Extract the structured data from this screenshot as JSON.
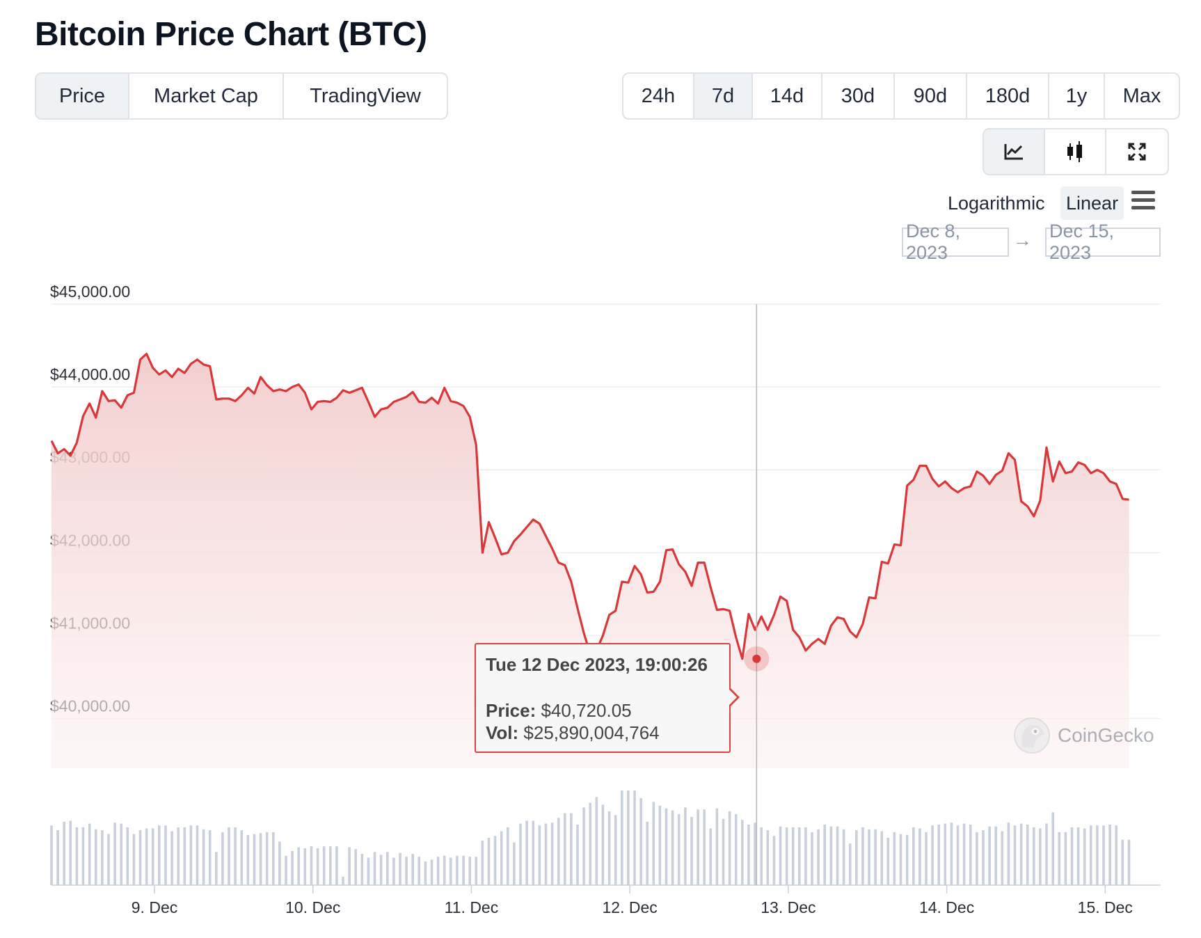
{
  "header": {
    "title": "Bitcoin Price Chart (BTC)"
  },
  "tabs": [
    {
      "label": "Price",
      "active": true
    },
    {
      "label": "Market Cap",
      "active": false
    },
    {
      "label": "TradingView",
      "active": false
    }
  ],
  "ranges": [
    {
      "label": "24h",
      "active": false
    },
    {
      "label": "7d",
      "active": true
    },
    {
      "label": "14d",
      "active": false
    },
    {
      "label": "30d",
      "active": false
    },
    {
      "label": "90d",
      "active": false
    },
    {
      "label": "180d",
      "active": false
    },
    {
      "label": "1y",
      "active": false
    },
    {
      "label": "Max",
      "active": false
    }
  ],
  "tools": [
    {
      "icon": "line-chart-icon",
      "active": true
    },
    {
      "icon": "candlestick-icon",
      "active": false
    },
    {
      "icon": "expand-icon",
      "active": false
    }
  ],
  "scale": {
    "log_label": "Logarithmic",
    "linear_label": "Linear",
    "selected": "Linear"
  },
  "date_range": {
    "from": "Dec 8, 2023",
    "arrow": "→",
    "to": "Dec 15, 2023"
  },
  "tooltip": {
    "date": "Tue 12 Dec 2023, 19:00:26",
    "price_label": "Price:",
    "price_value": "$40,720.05",
    "vol_label": "Vol:",
    "vol_value": "$25,890,004,764"
  },
  "watermark": {
    "text": "CoinGecko"
  },
  "colors": {
    "line": "#d9383a",
    "area_top": "#f4d2d2",
    "volume": "#c8d0dc",
    "grid": "#eeeeee"
  },
  "chart_data": {
    "type": "area",
    "title": "",
    "xlabel": "",
    "ylabel": "",
    "x_range": [
      8.35,
      15.35
    ],
    "ylim": [
      39400,
      45000
    ],
    "y_ticks": [
      40000,
      41000,
      42000,
      43000,
      44000,
      45000
    ],
    "y_tick_labels": [
      "$40,000.00",
      "$41,000.00",
      "$42,000.00",
      "$43,000.00",
      "$44,000.00",
      "$45,000.00"
    ],
    "x_ticks": [
      9,
      10,
      11,
      12,
      13,
      14,
      15
    ],
    "x_tick_labels": [
      "9. Dec",
      "10. Dec",
      "11. Dec",
      "12. Dec",
      "13. Dec",
      "14. Dec",
      "15. Dec"
    ],
    "grid": true,
    "legend": "none",
    "crosshair_x": 12.8,
    "highlight": {
      "x": 12.8,
      "y": 40720.05
    },
    "price_series": [
      [
        8.35,
        43350
      ],
      [
        8.39,
        43200
      ],
      [
        8.43,
        43250
      ],
      [
        8.47,
        43170
      ],
      [
        8.51,
        43330
      ],
      [
        8.55,
        43650
      ],
      [
        8.59,
        43800
      ],
      [
        8.63,
        43630
      ],
      [
        8.67,
        43950
      ],
      [
        8.71,
        43830
      ],
      [
        8.75,
        43840
      ],
      [
        8.79,
        43750
      ],
      [
        8.83,
        43900
      ],
      [
        8.87,
        43930
      ],
      [
        8.91,
        44330
      ],
      [
        8.95,
        44400
      ],
      [
        8.99,
        44230
      ],
      [
        9.03,
        44150
      ],
      [
        9.07,
        44200
      ],
      [
        9.11,
        44120
      ],
      [
        9.15,
        44220
      ],
      [
        9.19,
        44170
      ],
      [
        9.23,
        44280
      ],
      [
        9.27,
        44330
      ],
      [
        9.31,
        44270
      ],
      [
        9.35,
        44250
      ],
      [
        9.39,
        43850
      ],
      [
        9.43,
        43860
      ],
      [
        9.47,
        43860
      ],
      [
        9.51,
        43830
      ],
      [
        9.55,
        43900
      ],
      [
        9.59,
        43990
      ],
      [
        9.63,
        43920
      ],
      [
        9.67,
        44120
      ],
      [
        9.71,
        44020
      ],
      [
        9.75,
        43950
      ],
      [
        9.79,
        43970
      ],
      [
        9.83,
        43950
      ],
      [
        9.87,
        44000
      ],
      [
        9.91,
        44030
      ],
      [
        9.95,
        43930
      ],
      [
        9.99,
        43730
      ],
      [
        10.03,
        43820
      ],
      [
        10.07,
        43830
      ],
      [
        10.11,
        43820
      ],
      [
        10.15,
        43870
      ],
      [
        10.19,
        43960
      ],
      [
        10.23,
        43930
      ],
      [
        10.27,
        43960
      ],
      [
        10.31,
        43990
      ],
      [
        10.35,
        43820
      ],
      [
        10.39,
        43640
      ],
      [
        10.43,
        43730
      ],
      [
        10.47,
        43750
      ],
      [
        10.51,
        43820
      ],
      [
        10.55,
        43850
      ],
      [
        10.59,
        43880
      ],
      [
        10.63,
        43940
      ],
      [
        10.67,
        43820
      ],
      [
        10.71,
        43810
      ],
      [
        10.75,
        43870
      ],
      [
        10.79,
        43800
      ],
      [
        10.83,
        43990
      ],
      [
        10.87,
        43830
      ],
      [
        10.91,
        43810
      ],
      [
        10.95,
        43770
      ],
      [
        10.99,
        43640
      ],
      [
        11.03,
        43300
      ],
      [
        11.07,
        42000
      ],
      [
        11.11,
        42370
      ],
      [
        11.15,
        42180
      ],
      [
        11.19,
        41980
      ],
      [
        11.23,
        42000
      ],
      [
        11.27,
        42140
      ],
      [
        11.31,
        42220
      ],
      [
        11.35,
        42310
      ],
      [
        11.39,
        42400
      ],
      [
        11.43,
        42350
      ],
      [
        11.47,
        42200
      ],
      [
        11.51,
        42050
      ],
      [
        11.55,
        41880
      ],
      [
        11.59,
        41850
      ],
      [
        11.63,
        41650
      ],
      [
        11.67,
        41330
      ],
      [
        11.71,
        41030
      ],
      [
        11.75,
        40780
      ],
      [
        11.79,
        40820
      ],
      [
        11.83,
        41000
      ],
      [
        11.87,
        41250
      ],
      [
        11.91,
        41300
      ],
      [
        11.95,
        41650
      ],
      [
        11.99,
        41640
      ],
      [
        12.03,
        41840
      ],
      [
        12.07,
        41740
      ],
      [
        12.11,
        41520
      ],
      [
        12.15,
        41530
      ],
      [
        12.19,
        41650
      ],
      [
        12.23,
        42030
      ],
      [
        12.27,
        42040
      ],
      [
        12.31,
        41860
      ],
      [
        12.35,
        41770
      ],
      [
        12.39,
        41600
      ],
      [
        12.43,
        41880
      ],
      [
        12.47,
        41880
      ],
      [
        12.51,
        41580
      ],
      [
        12.55,
        41310
      ],
      [
        12.59,
        41320
      ],
      [
        12.63,
        41300
      ],
      [
        12.67,
        40980
      ],
      [
        12.71,
        40720
      ],
      [
        12.75,
        41260
      ],
      [
        12.79,
        41070
      ],
      [
        12.83,
        41230
      ],
      [
        12.87,
        41070
      ],
      [
        12.91,
        41250
      ],
      [
        12.95,
        41470
      ],
      [
        12.99,
        41420
      ],
      [
        13.03,
        41070
      ],
      [
        13.07,
        40980
      ],
      [
        13.11,
        40820
      ],
      [
        13.15,
        40900
      ],
      [
        13.19,
        40960
      ],
      [
        13.23,
        40900
      ],
      [
        13.27,
        41120
      ],
      [
        13.31,
        41220
      ],
      [
        13.35,
        41200
      ],
      [
        13.39,
        41050
      ],
      [
        13.43,
        40980
      ],
      [
        13.47,
        41140
      ],
      [
        13.51,
        41460
      ],
      [
        13.55,
        41450
      ],
      [
        13.59,
        41890
      ],
      [
        13.63,
        41870
      ],
      [
        13.67,
        42100
      ],
      [
        13.71,
        42090
      ],
      [
        13.75,
        42810
      ],
      [
        13.79,
        42880
      ],
      [
        13.83,
        43050
      ],
      [
        13.87,
        43050
      ],
      [
        13.91,
        42890
      ],
      [
        13.95,
        42800
      ],
      [
        13.99,
        42860
      ],
      [
        14.03,
        42780
      ],
      [
        14.07,
        42730
      ],
      [
        14.11,
        42780
      ],
      [
        14.15,
        42800
      ],
      [
        14.19,
        42980
      ],
      [
        14.23,
        42930
      ],
      [
        14.27,
        42830
      ],
      [
        14.31,
        42940
      ],
      [
        14.35,
        42990
      ],
      [
        14.39,
        43200
      ],
      [
        14.43,
        43120
      ],
      [
        14.47,
        42620
      ],
      [
        14.51,
        42560
      ],
      [
        14.55,
        42440
      ],
      [
        14.59,
        42630
      ],
      [
        14.63,
        43270
      ],
      [
        14.67,
        42860
      ],
      [
        14.71,
        43100
      ],
      [
        14.75,
        42960
      ],
      [
        14.79,
        42980
      ],
      [
        14.83,
        43090
      ],
      [
        14.87,
        43060
      ],
      [
        14.91,
        42960
      ],
      [
        14.95,
        43000
      ],
      [
        14.99,
        42960
      ],
      [
        15.03,
        42860
      ],
      [
        15.07,
        42830
      ],
      [
        15.11,
        42650
      ],
      [
        15.15,
        42640
      ]
    ],
    "volume_series": [
      [
        8.35,
        0.63
      ],
      [
        8.39,
        0.58
      ],
      [
        8.43,
        0.67
      ],
      [
        8.47,
        0.68
      ],
      [
        8.51,
        0.61
      ],
      [
        8.55,
        0.61
      ],
      [
        8.59,
        0.65
      ],
      [
        8.63,
        0.59
      ],
      [
        8.67,
        0.58
      ],
      [
        8.71,
        0.54
      ],
      [
        8.75,
        0.66
      ],
      [
        8.79,
        0.65
      ],
      [
        8.83,
        0.61
      ],
      [
        8.87,
        0.54
      ],
      [
        8.91,
        0.58
      ],
      [
        8.95,
        0.6
      ],
      [
        8.99,
        0.6
      ],
      [
        9.03,
        0.63
      ],
      [
        9.07,
        0.63
      ],
      [
        9.11,
        0.57
      ],
      [
        9.15,
        0.61
      ],
      [
        9.19,
        0.61
      ],
      [
        9.23,
        0.63
      ],
      [
        9.27,
        0.63
      ],
      [
        9.31,
        0.59
      ],
      [
        9.35,
        0.58
      ],
      [
        9.39,
        0.35
      ],
      [
        9.43,
        0.56
      ],
      [
        9.47,
        0.61
      ],
      [
        9.51,
        0.61
      ],
      [
        9.55,
        0.58
      ],
      [
        9.59,
        0.53
      ],
      [
        9.63,
        0.54
      ],
      [
        9.67,
        0.55
      ],
      [
        9.71,
        0.56
      ],
      [
        9.75,
        0.56
      ],
      [
        9.79,
        0.46
      ],
      [
        9.83,
        0.31
      ],
      [
        9.87,
        0.36
      ],
      [
        9.91,
        0.4
      ],
      [
        9.95,
        0.39
      ],
      [
        9.99,
        0.41
      ],
      [
        10.03,
        0.39
      ],
      [
        10.07,
        0.41
      ],
      [
        10.11,
        0.41
      ],
      [
        10.15,
        0.41
      ],
      [
        10.19,
        0.09
      ],
      [
        10.23,
        0.4
      ],
      [
        10.27,
        0.38
      ],
      [
        10.31,
        0.33
      ],
      [
        10.35,
        0.29
      ],
      [
        10.39,
        0.35
      ],
      [
        10.43,
        0.32
      ],
      [
        10.47,
        0.35
      ],
      [
        10.51,
        0.29
      ],
      [
        10.55,
        0.34
      ],
      [
        10.59,
        0.3
      ],
      [
        10.63,
        0.33
      ],
      [
        10.67,
        0.3
      ],
      [
        10.71,
        0.25
      ],
      [
        10.75,
        0.27
      ],
      [
        10.79,
        0.3
      ],
      [
        10.83,
        0.31
      ],
      [
        10.87,
        0.29
      ],
      [
        10.91,
        0.31
      ],
      [
        10.95,
        0.31
      ],
      [
        10.99,
        0.3
      ],
      [
        11.03,
        0.3
      ],
      [
        11.07,
        0.47
      ],
      [
        11.11,
        0.5
      ],
      [
        11.15,
        0.52
      ],
      [
        11.19,
        0.57
      ],
      [
        11.23,
        0.61
      ],
      [
        11.27,
        0.45
      ],
      [
        11.31,
        0.65
      ],
      [
        11.35,
        0.68
      ],
      [
        11.39,
        0.68
      ],
      [
        11.43,
        0.63
      ],
      [
        11.47,
        0.65
      ],
      [
        11.51,
        0.66
      ],
      [
        11.55,
        0.71
      ],
      [
        11.59,
        0.76
      ],
      [
        11.63,
        0.76
      ],
      [
        11.67,
        0.64
      ],
      [
        11.71,
        0.82
      ],
      [
        11.75,
        0.87
      ],
      [
        11.79,
        0.93
      ],
      [
        11.83,
        0.85
      ],
      [
        11.87,
        0.78
      ],
      [
        11.91,
        0.74
      ],
      [
        11.95,
        1.0
      ],
      [
        11.99,
        1.0
      ],
      [
        12.03,
        1.0
      ],
      [
        12.07,
        0.92
      ],
      [
        12.11,
        0.67
      ],
      [
        12.15,
        0.88
      ],
      [
        12.19,
        0.84
      ],
      [
        12.23,
        0.81
      ],
      [
        12.27,
        0.79
      ],
      [
        12.31,
        0.75
      ],
      [
        12.35,
        0.82
      ],
      [
        12.39,
        0.72
      ],
      [
        12.43,
        0.8
      ],
      [
        12.47,
        0.8
      ],
      [
        12.51,
        0.6
      ],
      [
        12.55,
        0.81
      ],
      [
        12.59,
        0.7
      ],
      [
        12.63,
        0.78
      ],
      [
        12.67,
        0.75
      ],
      [
        12.71,
        0.69
      ],
      [
        12.75,
        0.64
      ],
      [
        12.79,
        0.66
      ],
      [
        12.83,
        0.61
      ],
      [
        12.87,
        0.58
      ],
      [
        12.91,
        0.52
      ],
      [
        12.95,
        0.62
      ],
      [
        12.99,
        0.61
      ],
      [
        13.03,
        0.61
      ],
      [
        13.07,
        0.61
      ],
      [
        13.11,
        0.61
      ],
      [
        13.15,
        0.56
      ],
      [
        13.19,
        0.59
      ],
      [
        13.23,
        0.64
      ],
      [
        13.27,
        0.62
      ],
      [
        13.31,
        0.62
      ],
      [
        13.35,
        0.59
      ],
      [
        13.39,
        0.44
      ],
      [
        13.43,
        0.58
      ],
      [
        13.47,
        0.61
      ],
      [
        13.51,
        0.59
      ],
      [
        13.55,
        0.59
      ],
      [
        13.59,
        0.57
      ],
      [
        13.63,
        0.5
      ],
      [
        13.67,
        0.56
      ],
      [
        13.71,
        0.54
      ],
      [
        13.75,
        0.53
      ],
      [
        13.79,
        0.61
      ],
      [
        13.83,
        0.6
      ],
      [
        13.87,
        0.56
      ],
      [
        13.91,
        0.63
      ],
      [
        13.95,
        0.64
      ],
      [
        13.99,
        0.65
      ],
      [
        14.03,
        0.66
      ],
      [
        14.07,
        0.63
      ],
      [
        14.11,
        0.65
      ],
      [
        14.15,
        0.64
      ],
      [
        14.19,
        0.56
      ],
      [
        14.23,
        0.58
      ],
      [
        14.27,
        0.62
      ],
      [
        14.31,
        0.62
      ],
      [
        14.35,
        0.57
      ],
      [
        14.39,
        0.66
      ],
      [
        14.43,
        0.63
      ],
      [
        14.47,
        0.65
      ],
      [
        14.51,
        0.64
      ],
      [
        14.55,
        0.61
      ],
      [
        14.59,
        0.6
      ],
      [
        14.63,
        0.65
      ],
      [
        14.67,
        0.77
      ],
      [
        14.71,
        0.56
      ],
      [
        14.75,
        0.56
      ],
      [
        14.79,
        0.61
      ],
      [
        14.83,
        0.61
      ],
      [
        14.87,
        0.6
      ],
      [
        14.91,
        0.63
      ],
      [
        14.95,
        0.63
      ],
      [
        14.99,
        0.63
      ],
      [
        15.03,
        0.64
      ],
      [
        15.07,
        0.63
      ],
      [
        15.11,
        0.48
      ],
      [
        15.15,
        0.48
      ]
    ]
  }
}
